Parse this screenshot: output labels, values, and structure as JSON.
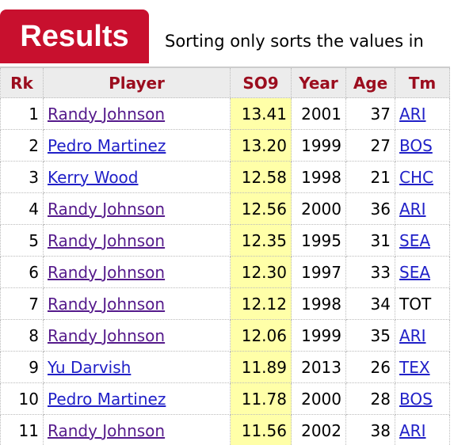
{
  "header": {
    "title": "Results",
    "note": "Sorting only sorts the values in"
  },
  "table": {
    "columns": [
      "Rk",
      "Player",
      "SO9",
      "Year",
      "Age",
      "Tm"
    ],
    "rows": [
      [
        "1",
        "Randy Johnson",
        "13.41",
        "2001",
        "37",
        "ARI"
      ],
      [
        "2",
        "Pedro Martinez",
        "13.20",
        "1999",
        "27",
        "BOS"
      ],
      [
        "3",
        "Kerry Wood",
        "12.58",
        "1998",
        "21",
        "CHC"
      ],
      [
        "4",
        "Randy Johnson",
        "12.56",
        "2000",
        "36",
        "ARI"
      ],
      [
        "5",
        "Randy Johnson",
        "12.35",
        "1995",
        "31",
        "SEA"
      ],
      [
        "6",
        "Randy Johnson",
        "12.30",
        "1997",
        "33",
        "SEA"
      ],
      [
        "7",
        "Randy Johnson",
        "12.12",
        "1998",
        "34",
        "TOT"
      ],
      [
        "8",
        "Randy Johnson",
        "12.06",
        "1999",
        "35",
        "ARI"
      ],
      [
        "9",
        "Yu Darvish",
        "11.89",
        "2013",
        "26",
        "TEX"
      ],
      [
        "10",
        "Pedro Martinez",
        "11.78",
        "2000",
        "28",
        "BOS"
      ],
      [
        "11",
        "Randy Johnson",
        "11.56",
        "2002",
        "38",
        "ARI"
      ]
    ]
  }
}
